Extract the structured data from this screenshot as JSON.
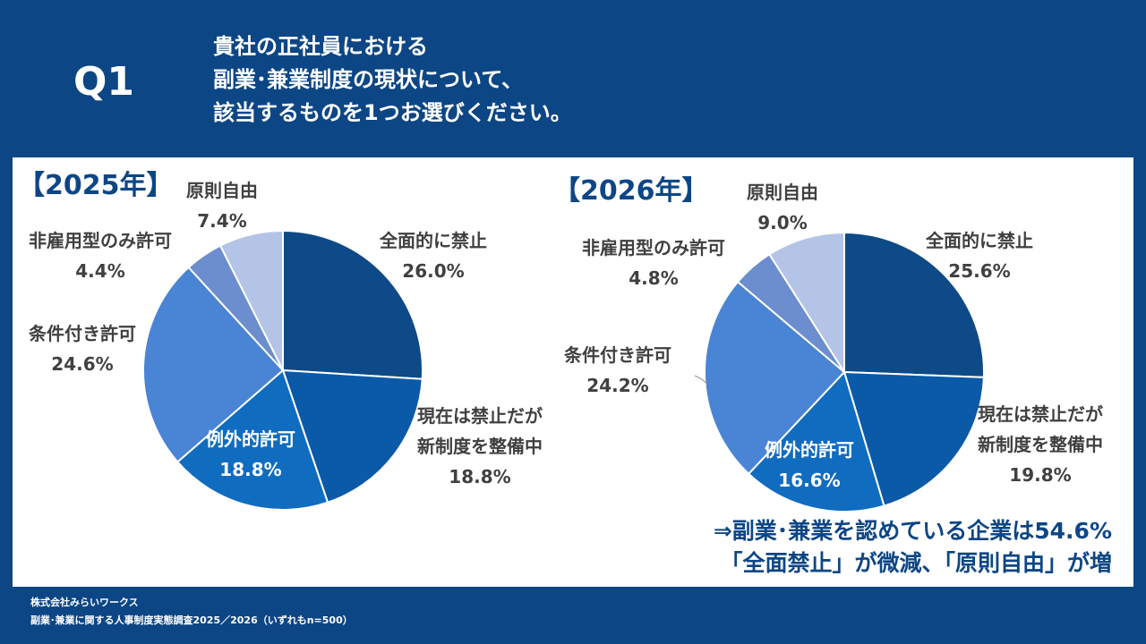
{
  "header": {
    "q_label": "Q1",
    "question_lines": [
      "貴社の正社員における",
      "副業･兼業制度の現状について、",
      "該当するものを1つお選びください。"
    ]
  },
  "colors": {
    "background": "#0d4685",
    "panel": "#ffffff",
    "title": "#0d4685",
    "slices": [
      "#0e4a87",
      "#0a5aa8",
      "#106cbf",
      "#4a84d4",
      "#6c8dce",
      "#b3c4e6"
    ]
  },
  "chart_data": [
    {
      "type": "pie",
      "title": "【2025年】",
      "slices": [
        {
          "label": "全面的に禁止",
          "value": 26.0,
          "display": "26.0%"
        },
        {
          "label": "現在は禁止だが\n新制度を整備中",
          "value": 18.8,
          "display": "18.8%"
        },
        {
          "label": "例外的許可",
          "value": 18.8,
          "display": "18.8%"
        },
        {
          "label": "条件付き許可",
          "value": 24.6,
          "display": "24.6%"
        },
        {
          "label": "非雇用型のみ許可",
          "value": 4.4,
          "display": "4.4%"
        },
        {
          "label": "原則自由",
          "value": 7.4,
          "display": "7.4%"
        }
      ]
    },
    {
      "type": "pie",
      "title": "【2026年】",
      "slices": [
        {
          "label": "全面的に禁止",
          "value": 25.6,
          "display": "25.6%"
        },
        {
          "label": "現在は禁止だが\n新制度を整備中",
          "value": 19.8,
          "display": "19.8%"
        },
        {
          "label": "例外的許可",
          "value": 16.6,
          "display": "16.6%"
        },
        {
          "label": "条件付き許可",
          "value": 24.2,
          "display": "24.2%"
        },
        {
          "label": "非雇用型のみ許可",
          "value": 4.8,
          "display": "4.8%"
        },
        {
          "label": "原則自由",
          "value": 9.0,
          "display": "9.0%"
        }
      ]
    }
  ],
  "conclusion": {
    "line1": "⇒副業･兼業を認めている企業は54.6%",
    "line2": "「全面禁止」が微減、「原則自由」が増"
  },
  "footer": {
    "line1": "株式会社みらいワークス",
    "line2": "副業･兼業に関する人事制度実態調査2025／2026（いずれもn=500）"
  }
}
